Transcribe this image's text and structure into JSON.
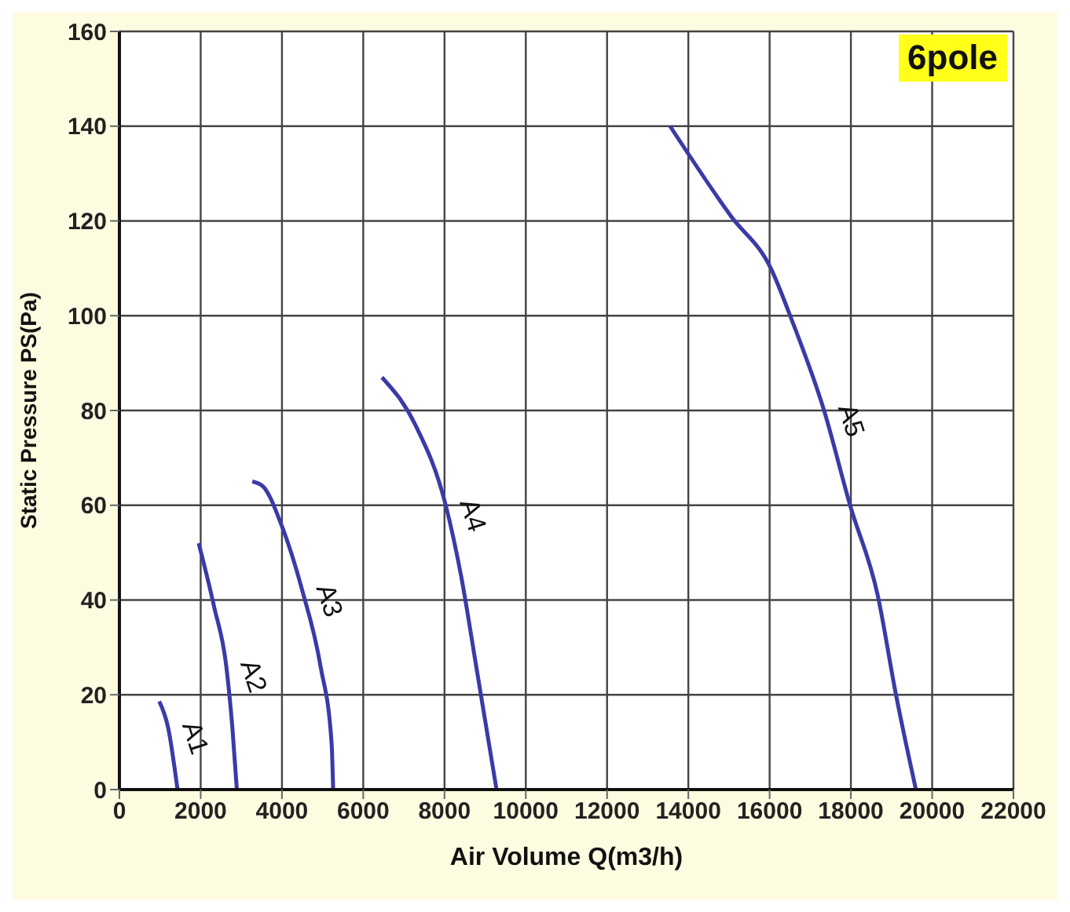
{
  "chart_data": {
    "type": "line",
    "xlabel": "Air Volume Q(m3/h)",
    "ylabel": "Static Pressure PS(Pa)",
    "annotations": [
      "6pole"
    ],
    "xlim": [
      0,
      22000
    ],
    "xticks": [
      0,
      2000,
      4000,
      6000,
      8000,
      10000,
      12000,
      14000,
      16000,
      18000,
      20000,
      22000
    ],
    "ylim": [
      0,
      160
    ],
    "yticks": [
      0,
      20,
      40,
      60,
      80,
      100,
      120,
      140,
      160
    ],
    "grid": true,
    "marker": "none",
    "line_style": "solid",
    "series": [
      {
        "name": "A1",
        "color": "#3a3aa8",
        "x": [
          980,
          1200,
          1430
        ],
        "values": [
          18.6,
          13,
          0
        ]
      },
      {
        "name": "A2",
        "color": "#3a3aa8",
        "x": [
          1950,
          2330,
          2630,
          2780,
          2890
        ],
        "values": [
          52,
          38.6,
          26,
          13,
          0
        ]
      },
      {
        "name": "A3",
        "color": "#3a3aa8",
        "x": [
          3270,
          3530,
          3980,
          4500,
          4950,
          5220,
          5260
        ],
        "values": [
          65,
          64,
          56,
          42,
          26,
          10,
          0
        ]
      },
      {
        "name": "A4",
        "color": "#3a3aa8",
        "x": [
          6460,
          7280,
          8030,
          8410,
          8780,
          9280
        ],
        "values": [
          87,
          77,
          60,
          45,
          26,
          0
        ]
      },
      {
        "name": "A5",
        "color": "#3a3aa8",
        "x": [
          13550,
          15050,
          16030,
          16550,
          17340,
          17980,
          18660,
          19110,
          19600
        ],
        "values": [
          140,
          121,
          110,
          99,
          80,
          60,
          41,
          20,
          0
        ]
      }
    ]
  }
}
